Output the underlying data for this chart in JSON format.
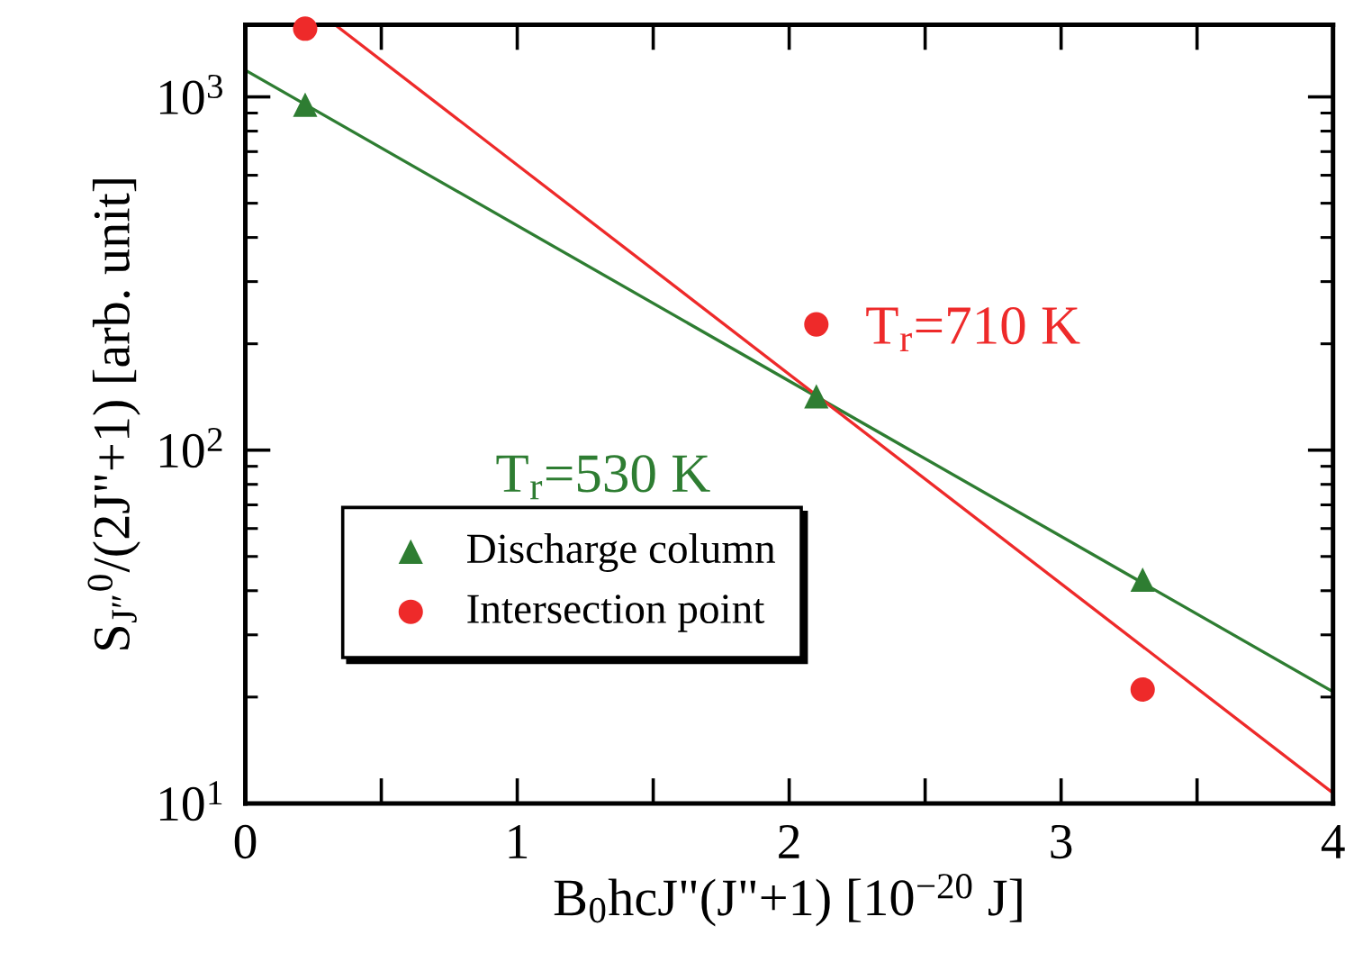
{
  "chart_data": {
    "type": "scatter",
    "xlabel": "B$_{0}$hcJ\"(J\"+1) [10$^{−20}$ J]",
    "ylabel": "S$_{J″}$$^{0}$/(2J\"+1) [arb. unit]",
    "log": "y",
    "xlim": [
      0,
      4
    ],
    "ylim": [
      10,
      1600
    ],
    "xticks": [
      0,
      {
        "value": 0.5,
        "label": null
      },
      1,
      {
        "value": 1.5,
        "label": null
      },
      2,
      {
        "value": 2.5,
        "label": null
      },
      3,
      {
        "value": 3.5,
        "label": null
      },
      4
    ],
    "yticks": [
      {
        "value": 10,
        "label": "10$^{1}$"
      },
      {
        "value": 100,
        "label": "10$^{2}$"
      },
      {
        "value": 1000,
        "label": "10$^{3}$"
      }
    ],
    "grid": false,
    "legend": "bottom left",
    "series": [
      {
        "name": "Discharge column",
        "marker": "triangle",
        "color": "#2e7d32",
        "x": [
          0.22,
          2.1,
          3.3
        ],
        "values": [
          950,
          142,
          43
        ]
      },
      {
        "name": "Intersection point",
        "marker": "circle",
        "color": "#ee2a2a",
        "x": [
          0.22,
          2.1,
          3.3
        ],
        "values": [
          1560,
          227,
          21
        ]
      },
      {
        "type": "line",
        "marker": "none",
        "color": "#2e7d32",
        "x": [
          0,
          4
        ],
        "values": [
          1190,
          20.7
        ]
      },
      {
        "type": "line",
        "marker": "none",
        "color": "#ee2a2a",
        "x": [
          0.33,
          4
        ],
        "values": [
          1600,
          10.7
        ]
      }
    ],
    "annotations": [
      "T$_{r}$=530 K",
      "T$_{r}$=710 K"
    ]
  }
}
